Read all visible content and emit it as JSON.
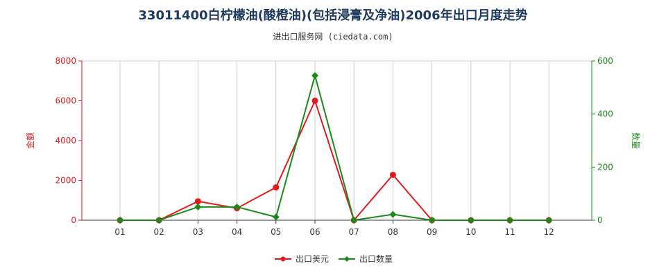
{
  "header": {
    "title": "33011400白柠檬油(酸橙油)(包括浸膏及净油)2006年出口月度走势",
    "subtitle": "进出口服务网 (ciedata.com)"
  },
  "colors": {
    "amount": "#e31a1c",
    "quantity": "#1a8a1a",
    "grid": "#cccccc",
    "axis": "#333333"
  },
  "chart_data": {
    "type": "line",
    "title": "33011400白柠檬油(酸橙油)(包括浸膏及净油)2006年出口月度走势",
    "subtitle": "进出口服务网 (ciedata.com)",
    "categories": [
      "01",
      "02",
      "03",
      "04",
      "05",
      "06",
      "07",
      "08",
      "09",
      "10",
      "11",
      "12"
    ],
    "y_left": {
      "label": "金额",
      "lim": [
        0,
        8000
      ],
      "ticks": [
        "0",
        "2000",
        "4000",
        "6000",
        "8000"
      ]
    },
    "y_right": {
      "label": "数量",
      "lim": [
        0,
        600
      ],
      "ticks": [
        "0",
        "200",
        "400",
        "600"
      ]
    },
    "series": [
      {
        "name": "出口美元",
        "axis": "left",
        "values": [
          0,
          0,
          950,
          600,
          1650,
          6000,
          0,
          2280,
          0,
          0,
          0,
          0
        ]
      },
      {
        "name": "出口数量",
        "axis": "right",
        "values": [
          0,
          0,
          50,
          50,
          12,
          545,
          0,
          22,
          0,
          0,
          0,
          0
        ]
      }
    ],
    "grid": {
      "vertical": true,
      "horizontal": false
    },
    "legend_position": "bottom-center"
  }
}
